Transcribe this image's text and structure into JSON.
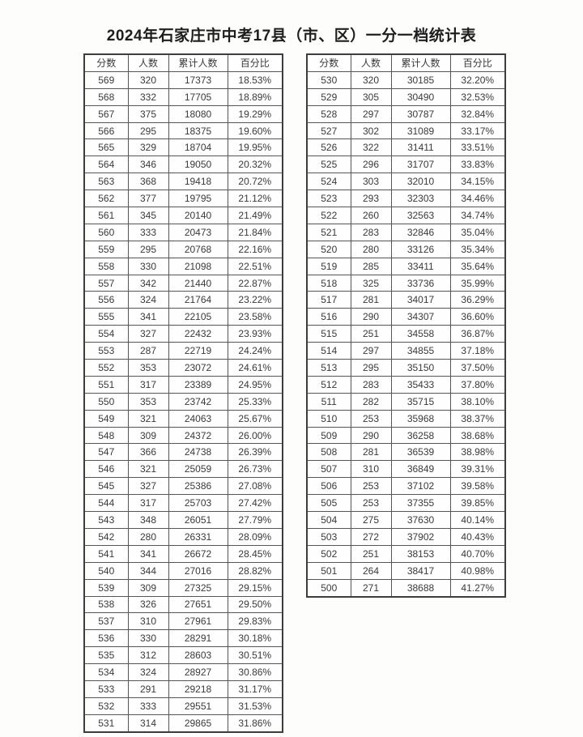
{
  "title": "2024年石家庄市中考17县（市、区）一分一档统计表",
  "columns": [
    "分数",
    "人数",
    "累计人数",
    "百分比"
  ],
  "colors": {
    "background": "#fdfdfc",
    "title_text": "#1e1e1e",
    "cell_text": "#3a3a3a",
    "border": "#565656",
    "outer_border": "#3d3d3d"
  },
  "left_table": {
    "rows": [
      [
        569,
        320,
        17373,
        "18.53%"
      ],
      [
        568,
        332,
        17705,
        "18.89%"
      ],
      [
        567,
        375,
        18080,
        "19.29%"
      ],
      [
        566,
        295,
        18375,
        "19.60%"
      ],
      [
        565,
        329,
        18704,
        "19.95%"
      ],
      [
        564,
        346,
        19050,
        "20.32%"
      ],
      [
        563,
        368,
        19418,
        "20.72%"
      ],
      [
        562,
        377,
        19795,
        "21.12%"
      ],
      [
        561,
        345,
        20140,
        "21.49%"
      ],
      [
        560,
        333,
        20473,
        "21.84%"
      ],
      [
        559,
        295,
        20768,
        "22.16%"
      ],
      [
        558,
        330,
        21098,
        "22.51%"
      ],
      [
        557,
        342,
        21440,
        "22.87%"
      ],
      [
        556,
        324,
        21764,
        "23.22%"
      ],
      [
        555,
        341,
        22105,
        "23.58%"
      ],
      [
        554,
        327,
        22432,
        "23.93%"
      ],
      [
        553,
        287,
        22719,
        "24.24%"
      ],
      [
        552,
        353,
        23072,
        "24.61%"
      ],
      [
        551,
        317,
        23389,
        "24.95%"
      ],
      [
        550,
        353,
        23742,
        "25.33%"
      ],
      [
        549,
        321,
        24063,
        "25.67%"
      ],
      [
        548,
        309,
        24372,
        "26.00%"
      ],
      [
        547,
        366,
        24738,
        "26.39%"
      ],
      [
        546,
        321,
        25059,
        "26.73%"
      ],
      [
        545,
        327,
        25386,
        "27.08%"
      ],
      [
        544,
        317,
        25703,
        "27.42%"
      ],
      [
        543,
        348,
        26051,
        "27.79%"
      ],
      [
        542,
        280,
        26331,
        "28.09%"
      ],
      [
        541,
        341,
        26672,
        "28.45%"
      ],
      [
        540,
        344,
        27016,
        "28.82%"
      ],
      [
        539,
        309,
        27325,
        "29.15%"
      ],
      [
        538,
        326,
        27651,
        "29.50%"
      ],
      [
        537,
        310,
        27961,
        "29.83%"
      ],
      [
        536,
        330,
        28291,
        "30.18%"
      ],
      [
        535,
        312,
        28603,
        "30.51%"
      ],
      [
        534,
        324,
        28927,
        "30.86%"
      ],
      [
        533,
        291,
        29218,
        "31.17%"
      ],
      [
        532,
        333,
        29551,
        "31.53%"
      ],
      [
        531,
        314,
        29865,
        "31.86%"
      ]
    ]
  },
  "right_table": {
    "rows": [
      [
        530,
        320,
        30185,
        "32.20%"
      ],
      [
        529,
        305,
        30490,
        "32.53%"
      ],
      [
        528,
        297,
        30787,
        "32.84%"
      ],
      [
        527,
        302,
        31089,
        "33.17%"
      ],
      [
        526,
        322,
        31411,
        "33.51%"
      ],
      [
        525,
        296,
        31707,
        "33.83%"
      ],
      [
        524,
        303,
        32010,
        "34.15%"
      ],
      [
        523,
        293,
        32303,
        "34.46%"
      ],
      [
        522,
        260,
        32563,
        "34.74%"
      ],
      [
        521,
        283,
        32846,
        "35.04%"
      ],
      [
        520,
        280,
        33126,
        "35.34%"
      ],
      [
        519,
        285,
        33411,
        "35.64%"
      ],
      [
        518,
        325,
        33736,
        "35.99%"
      ],
      [
        517,
        281,
        34017,
        "36.29%"
      ],
      [
        516,
        290,
        34307,
        "36.60%"
      ],
      [
        515,
        251,
        34558,
        "36.87%"
      ],
      [
        514,
        297,
        34855,
        "37.18%"
      ],
      [
        513,
        295,
        35150,
        "37.50%"
      ],
      [
        512,
        283,
        35433,
        "37.80%"
      ],
      [
        511,
        282,
        35715,
        "38.10%"
      ],
      [
        510,
        253,
        35968,
        "38.37%"
      ],
      [
        509,
        290,
        36258,
        "38.68%"
      ],
      [
        508,
        281,
        36539,
        "38.98%"
      ],
      [
        507,
        310,
        36849,
        "39.31%"
      ],
      [
        506,
        253,
        37102,
        "39.58%"
      ],
      [
        505,
        253,
        37355,
        "39.85%"
      ],
      [
        504,
        275,
        37630,
        "40.14%"
      ],
      [
        503,
        272,
        37902,
        "40.43%"
      ],
      [
        502,
        251,
        38153,
        "40.70%"
      ],
      [
        501,
        264,
        38417,
        "40.98%"
      ],
      [
        500,
        271,
        38688,
        "41.27%"
      ]
    ]
  }
}
